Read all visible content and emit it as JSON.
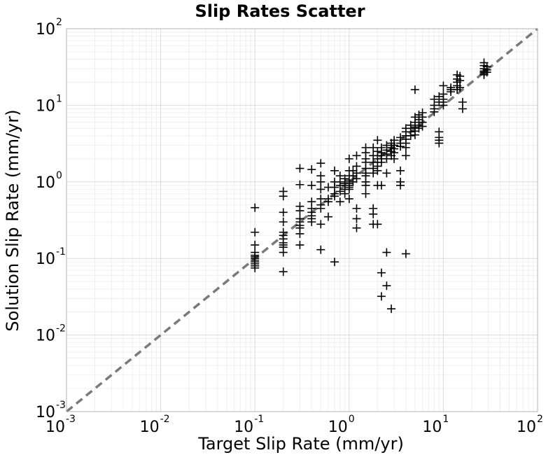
{
  "chart_data": {
    "type": "scatter",
    "title": "Slip Rates Scatter",
    "xlabel": "Target Slip Rate (mm/yr)",
    "ylabel": "Solution Slip Rate (mm/yr)",
    "x_scale": "log",
    "y_scale": "log",
    "xlim": [
      0.001,
      100
    ],
    "ylim": [
      0.001,
      100
    ],
    "grid": true,
    "marker": "plus",
    "marker_color": "#000000",
    "x_ticks": [
      {
        "value": 0.001,
        "base": "10",
        "exp": "-3"
      },
      {
        "value": 0.01,
        "base": "10",
        "exp": "-2"
      },
      {
        "value": 0.1,
        "base": "10",
        "exp": "-1"
      },
      {
        "value": 1,
        "base": "10",
        "exp": "0"
      },
      {
        "value": 10,
        "base": "10",
        "exp": "1"
      },
      {
        "value": 100,
        "base": "10",
        "exp": "2"
      }
    ],
    "y_ticks": [
      {
        "value": 0.001,
        "base": "10",
        "exp": "-3"
      },
      {
        "value": 0.01,
        "base": "10",
        "exp": "-2"
      },
      {
        "value": 0.1,
        "base": "10",
        "exp": "-1"
      },
      {
        "value": 1,
        "base": "10",
        "exp": "0"
      },
      {
        "value": 10,
        "base": "10",
        "exp": "1"
      },
      {
        "value": 100,
        "base": "10",
        "exp": "2"
      }
    ],
    "reference_line": {
      "style": "dashed",
      "color": "#7a7a7a",
      "from": [
        0.001,
        0.001
      ],
      "to": [
        100,
        100
      ]
    },
    "series": [
      {
        "points": [
          [
            0.1,
            0.46
          ],
          [
            0.1,
            0.22
          ],
          [
            0.1,
            0.15
          ],
          [
            0.1,
            0.12
          ],
          [
            0.1,
            0.11
          ],
          [
            0.1,
            0.105
          ],
          [
            0.1,
            0.1
          ],
          [
            0.1,
            0.095
          ],
          [
            0.1,
            0.09
          ],
          [
            0.1,
            0.085
          ],
          [
            0.1,
            0.08
          ],
          [
            0.1,
            0.075
          ],
          [
            0.2,
            0.75
          ],
          [
            0.2,
            0.65
          ],
          [
            0.2,
            0.4
          ],
          [
            0.2,
            0.3
          ],
          [
            0.2,
            0.22
          ],
          [
            0.2,
            0.2
          ],
          [
            0.2,
            0.18
          ],
          [
            0.2,
            0.16
          ],
          [
            0.2,
            0.15
          ],
          [
            0.2,
            0.14
          ],
          [
            0.2,
            0.12
          ],
          [
            0.2,
            0.067
          ],
          [
            0.3,
            1.5
          ],
          [
            0.3,
            0.92
          ],
          [
            0.3,
            0.48
          ],
          [
            0.3,
            0.42
          ],
          [
            0.3,
            0.33
          ],
          [
            0.3,
            0.3
          ],
          [
            0.3,
            0.27
          ],
          [
            0.3,
            0.25
          ],
          [
            0.3,
            0.21
          ],
          [
            0.3,
            0.15
          ],
          [
            0.4,
            1.45
          ],
          [
            0.4,
            0.9
          ],
          [
            0.4,
            0.55
          ],
          [
            0.4,
            0.45
          ],
          [
            0.4,
            0.4
          ],
          [
            0.4,
            0.36
          ],
          [
            0.4,
            0.33
          ],
          [
            0.4,
            0.3
          ],
          [
            0.5,
            1.75
          ],
          [
            0.5,
            1.2
          ],
          [
            0.5,
            1.0
          ],
          [
            0.5,
            0.8
          ],
          [
            0.5,
            0.6
          ],
          [
            0.5,
            0.5
          ],
          [
            0.5,
            0.45
          ],
          [
            0.5,
            0.28
          ],
          [
            0.5,
            0.13
          ],
          [
            0.6,
            0.85
          ],
          [
            0.6,
            0.6
          ],
          [
            0.6,
            0.55
          ],
          [
            0.6,
            0.35
          ],
          [
            0.7,
            1.4
          ],
          [
            0.7,
            1.0
          ],
          [
            0.7,
            0.85
          ],
          [
            0.7,
            0.7
          ],
          [
            0.7,
            0.65
          ],
          [
            0.7,
            0.09
          ],
          [
            0.8,
            1.2
          ],
          [
            0.8,
            1.0
          ],
          [
            0.8,
            0.9
          ],
          [
            0.8,
            0.75
          ],
          [
            0.8,
            0.55
          ],
          [
            0.9,
            1.1
          ],
          [
            0.9,
            0.95
          ],
          [
            0.9,
            0.8
          ],
          [
            0.9,
            0.7
          ],
          [
            1.0,
            2.0
          ],
          [
            1.0,
            1.4
          ],
          [
            1.0,
            1.2
          ],
          [
            1.0,
            1.05
          ],
          [
            1.0,
            1.0
          ],
          [
            1.0,
            0.95
          ],
          [
            1.0,
            0.9
          ],
          [
            1.0,
            0.85
          ],
          [
            1.0,
            0.8
          ],
          [
            1.0,
            0.6
          ],
          [
            1.1,
            1.4
          ],
          [
            1.1,
            1.2
          ],
          [
            1.1,
            1.0
          ],
          [
            1.2,
            2.2
          ],
          [
            1.2,
            1.6
          ],
          [
            1.2,
            1.3
          ],
          [
            1.2,
            1.1
          ],
          [
            1.2,
            0.45
          ],
          [
            1.2,
            0.33
          ],
          [
            1.2,
            0.25
          ],
          [
            1.5,
            2.8
          ],
          [
            1.5,
            2.4
          ],
          [
            1.5,
            2.0
          ],
          [
            1.5,
            1.8
          ],
          [
            1.5,
            1.5
          ],
          [
            1.5,
            1.3
          ],
          [
            1.5,
            1.2
          ],
          [
            1.5,
            1.0
          ],
          [
            1.5,
            0.9
          ],
          [
            1.5,
            0.7
          ],
          [
            1.8,
            2.8
          ],
          [
            1.8,
            2.2
          ],
          [
            1.8,
            1.8
          ],
          [
            1.8,
            1.5
          ],
          [
            1.8,
            1.3
          ],
          [
            1.8,
            0.45
          ],
          [
            1.8,
            0.38
          ],
          [
            1.8,
            0.28
          ],
          [
            2.0,
            3.5
          ],
          [
            2.0,
            2.5
          ],
          [
            2.0,
            2.2
          ],
          [
            2.0,
            2.0
          ],
          [
            2.0,
            1.8
          ],
          [
            2.0,
            1.6
          ],
          [
            2.0,
            1.4
          ],
          [
            2.0,
            0.9
          ],
          [
            2.0,
            0.28
          ],
          [
            2.2,
            2.8
          ],
          [
            2.2,
            2.4
          ],
          [
            2.2,
            2.2
          ],
          [
            2.2,
            2.0
          ],
          [
            2.2,
            1.8
          ],
          [
            2.2,
            0.9
          ],
          [
            2.2,
            0.065
          ],
          [
            2.2,
            0.032
          ],
          [
            2.5,
            3.0
          ],
          [
            2.5,
            2.6
          ],
          [
            2.5,
            2.3
          ],
          [
            2.5,
            2.0
          ],
          [
            2.5,
            1.3
          ],
          [
            2.5,
            0.12
          ],
          [
            2.5,
            0.044
          ],
          [
            2.8,
            3.2
          ],
          [
            2.8,
            2.8
          ],
          [
            2.8,
            2.5
          ],
          [
            2.8,
            2.2
          ],
          [
            2.8,
            0.022
          ],
          [
            3.0,
            3.5
          ],
          [
            3.0,
            3.0
          ],
          [
            3.0,
            2.7
          ],
          [
            3.0,
            2.4
          ],
          [
            3.0,
            2.0
          ],
          [
            3.5,
            3.8
          ],
          [
            3.5,
            3.2
          ],
          [
            3.5,
            2.9
          ],
          [
            3.5,
            1.4
          ],
          [
            3.5,
            1.0
          ],
          [
            3.5,
            0.9
          ],
          [
            4.0,
            5.0
          ],
          [
            4.0,
            4.5
          ],
          [
            4.0,
            4.0
          ],
          [
            4.0,
            3.6
          ],
          [
            4.0,
            3.2
          ],
          [
            4.0,
            2.8
          ],
          [
            4.0,
            2.2
          ],
          [
            4.0,
            0.115
          ],
          [
            4.5,
            5.5
          ],
          [
            4.5,
            5.0
          ],
          [
            4.5,
            4.5
          ],
          [
            4.5,
            4.0
          ],
          [
            5.0,
            16
          ],
          [
            5.0,
            7
          ],
          [
            5.0,
            6
          ],
          [
            5.0,
            5.2
          ],
          [
            5.0,
            4.6
          ],
          [
            5.0,
            4.1
          ],
          [
            5.5,
            7.5
          ],
          [
            5.5,
            6.5
          ],
          [
            5.5,
            5.5
          ],
          [
            5.5,
            5.0
          ],
          [
            6.0,
            8
          ],
          [
            6.0,
            7
          ],
          [
            6.0,
            6
          ],
          [
            6.0,
            5.3
          ],
          [
            8.0,
            12
          ],
          [
            8.0,
            10
          ],
          [
            8.0,
            9
          ],
          [
            8.0,
            8.2
          ],
          [
            9.0,
            13
          ],
          [
            9.0,
            11
          ],
          [
            9.0,
            4.5
          ],
          [
            9.0,
            3.8
          ],
          [
            9.0,
            3.5
          ],
          [
            9.0,
            3.2
          ],
          [
            10,
            18
          ],
          [
            10,
            14
          ],
          [
            10,
            12
          ],
          [
            10,
            11
          ],
          [
            10,
            10
          ],
          [
            12,
            17
          ],
          [
            12,
            16
          ],
          [
            12,
            15
          ],
          [
            14,
            25
          ],
          [
            14,
            22
          ],
          [
            14,
            20
          ],
          [
            14,
            18
          ],
          [
            14,
            16
          ],
          [
            15,
            24
          ],
          [
            15,
            21
          ],
          [
            15,
            17
          ],
          [
            16,
            11
          ],
          [
            16,
            9
          ],
          [
            27,
            36
          ],
          [
            27,
            33
          ],
          [
            27,
            30
          ],
          [
            27,
            28
          ],
          [
            27,
            27
          ],
          [
            27,
            26
          ],
          [
            27,
            25
          ],
          [
            29,
            32
          ],
          [
            29,
            29
          ],
          [
            29,
            27
          ]
        ]
      }
    ]
  }
}
